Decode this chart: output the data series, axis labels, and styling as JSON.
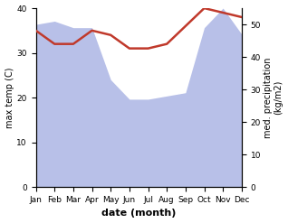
{
  "months": [
    "Jan",
    "Feb",
    "Mar",
    "Apr",
    "May",
    "Jun",
    "Jul",
    "Aug",
    "Sep",
    "Oct",
    "Nov",
    "Dec"
  ],
  "max_temp": [
    35,
    32,
    32,
    35,
    34,
    31,
    31,
    32,
    36,
    40,
    39,
    38
  ],
  "precipitation": [
    50,
    51,
    49,
    49,
    33,
    27,
    27,
    28,
    29,
    49,
    55,
    47
  ],
  "temp_color": "#c0392b",
  "precip_fill_color": "#b8c0e8",
  "temp_ylim": [
    0,
    40
  ],
  "precip_ylim": [
    0,
    55
  ],
  "temp_yticks": [
    0,
    10,
    20,
    30,
    40
  ],
  "precip_yticks": [
    0,
    10,
    20,
    30,
    40,
    50
  ],
  "xlabel": "date (month)",
  "ylabel_left": "max temp (C)",
  "ylabel_right": "med. precipitation\n(kg/m2)",
  "label_fontsize": 7,
  "tick_fontsize": 6.5
}
